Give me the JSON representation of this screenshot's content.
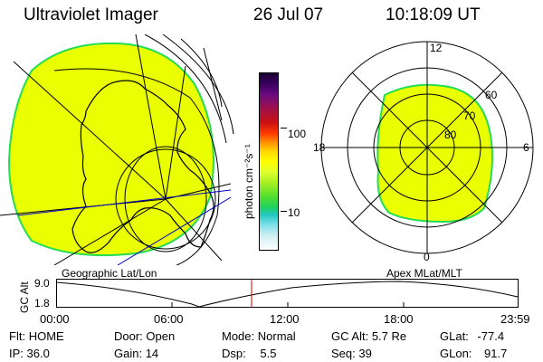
{
  "header": {
    "title": "Ultraviolet Imager",
    "date": "26 Jul 07",
    "time": "10:18:09 UT"
  },
  "colorbar": {
    "unit_label": "photon cm⁻²s⁻¹",
    "ticks": [
      "100",
      "10"
    ],
    "colors_top_to_bottom": [
      "#1a0030",
      "#3a0060",
      "#6a0a80",
      "#a0104a",
      "#cc1010",
      "#ff3a00",
      "#ff8c00",
      "#ffd400",
      "#ffff00",
      "#e0ff30",
      "#a8f020",
      "#50e030",
      "#20d060",
      "#20c8c0",
      "#80e0e8",
      "#d0eef2",
      "#ffffff"
    ]
  },
  "left_map": {
    "label": "Geographic Lat/Lon",
    "fill_color": "#eaff00",
    "edge_color": "#22dd55"
  },
  "right_map": {
    "label": "Apex MLat/MLT",
    "mlt_labels": {
      "top": "12",
      "left": "18",
      "right": "6",
      "bottom": "0"
    },
    "lat_labels": [
      "60",
      "70",
      "80"
    ],
    "fill_color": "#eaff00",
    "edge_color": "#22dd55"
  },
  "altitude_panel": {
    "y_axis_label": "GC Alt",
    "y_ticks": [
      "9.0",
      "1.8"
    ],
    "x_ticks": [
      "00:00",
      "06:00",
      "12:00",
      "18:00",
      "23:59"
    ],
    "marker_color": "#cc0000"
  },
  "status": {
    "flt_label": "Flt:",
    "flt_value": "HOME",
    "ip_label": "IP:",
    "ip_value": "36.0",
    "door_label": "Door:",
    "door_value": "Open",
    "gain_label": "Gain:",
    "gain_value": "14",
    "mode_label": "Mode:",
    "mode_value": "Normal",
    "dsp_label": "Dsp:",
    "dsp_value": "5.5",
    "gcalt_label": "GC Alt:",
    "gcalt_value": "5.7 Re",
    "seq_label": "Seq:",
    "seq_value": "39",
    "glat_label": "GLat:",
    "glat_value": "-77.4",
    "glon_label": "GLon:",
    "glon_value": "91.7"
  }
}
